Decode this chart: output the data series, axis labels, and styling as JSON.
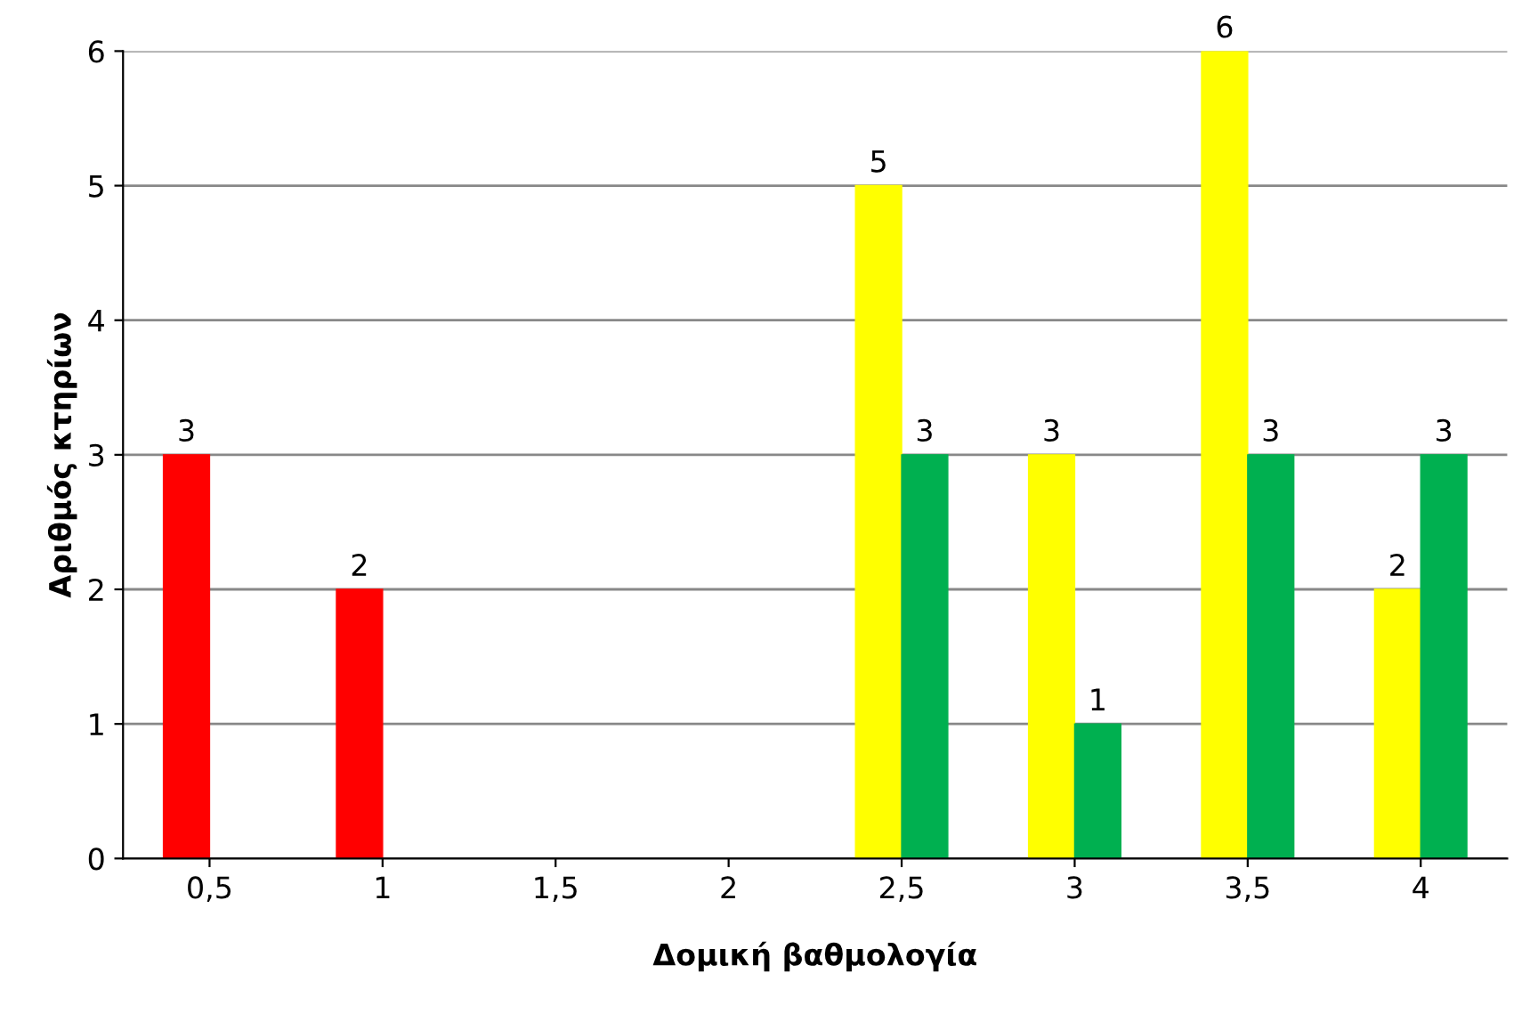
{
  "chart_data": {
    "type": "bar",
    "xlabel": "Δομική βαθμολογία",
    "ylabel": "Αριθμός κτηρίων",
    "categories": [
      "0,5",
      "1",
      "1,5",
      "2",
      "2,5",
      "3",
      "3,5",
      "4"
    ],
    "series": [
      {
        "colors": [
          "#ff0000",
          "#ff0000",
          null,
          null,
          "#ffff00",
          "#ffff00",
          "#ffff00",
          "#ffff00"
        ],
        "values": [
          3,
          2,
          null,
          null,
          5,
          3,
          6,
          2
        ]
      },
      {
        "color": "#00b050",
        "values": [
          null,
          null,
          null,
          null,
          3,
          1,
          3,
          3
        ]
      }
    ],
    "ylim": [
      0,
      6
    ],
    "yticks": [
      0,
      1,
      2,
      3,
      4,
      5,
      6
    ],
    "grid": "y",
    "data_labels": true
  }
}
